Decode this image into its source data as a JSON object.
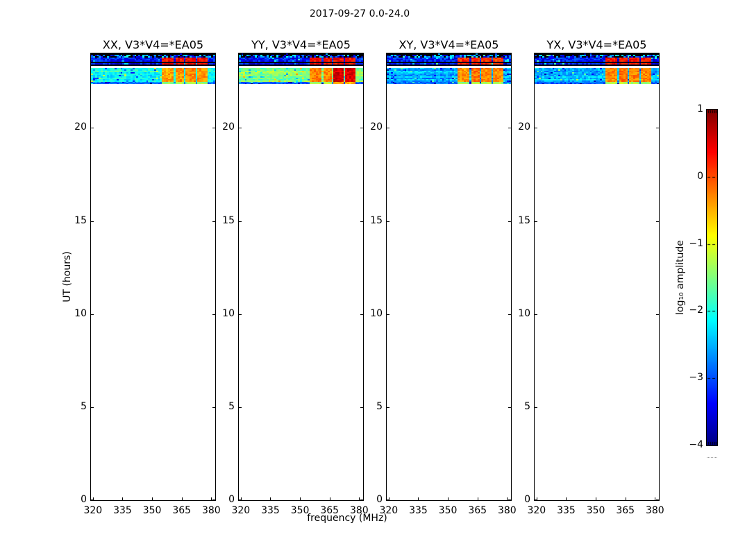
{
  "chart_data": {
    "type": "heatmap",
    "title": "2017-09-27 0.0-24.0",
    "xlabel": "frequency (MHz)",
    "ylabel": "UT (hours)",
    "colormap": "jet",
    "x_range_mhz": [
      319,
      382
    ],
    "x_tick_labels": [
      "320",
      "335",
      "350",
      "365",
      "380"
    ],
    "x_tick_values": [
      320,
      335,
      350,
      365,
      380
    ],
    "y_range_hours": [
      0,
      24
    ],
    "y_tick_labels": [
      "0",
      "5",
      "10",
      "15",
      "20"
    ],
    "y_tick_values": [
      0,
      5,
      10,
      15,
      20
    ],
    "colorbar": {
      "label": "log₁₀ amplitude",
      "tick_labels": [
        "1",
        "0",
        "−1",
        "−2",
        "−3",
        "−4"
      ],
      "tick_values": [
        1,
        0,
        -1,
        -2,
        -3,
        -4
      ],
      "range": [
        -4,
        1
      ]
    },
    "panels": [
      {
        "title": "XX, V3*V4=*EA05",
        "pol": "XX",
        "main_amp": -2.05,
        "main_patch_amps": [
          -0.4,
          -0.35,
          -0.3,
          -0.35
        ],
        "upper_patch_amp": 0.35
      },
      {
        "title": "YY, V3*V4=*EA05",
        "pol": "YY",
        "main_amp": -1.5,
        "main_patch_amps": [
          -0.25,
          -0.25,
          0.55,
          0.5
        ],
        "upper_patch_amp": 0.35
      },
      {
        "title": "XY, V3*V4=*EA05",
        "pol": "XY",
        "main_amp": -2.55,
        "main_patch_amps": [
          -0.35,
          -0.2,
          -0.3,
          -0.3
        ],
        "upper_patch_amp": 0.15
      },
      {
        "title": "YX, V3*V4=*EA05",
        "pol": "YX",
        "main_amp": -2.45,
        "main_patch_amps": [
          -0.3,
          -0.2,
          -0.25,
          -0.3
        ],
        "upper_patch_amp": 0.3
      }
    ],
    "time_bands": [
      {
        "id": "mask-top",
        "t": [
          23.78,
          24.0
        ],
        "type": "mask",
        "speckle_row_t": 23.87
      },
      {
        "id": "upper-blue",
        "t": [
          23.33,
          23.78
        ],
        "type": "upper",
        "amp": -3.3,
        "noise": 0.9,
        "dark_line_t": [
          23.36,
          23.52
        ],
        "has_patches": true
      },
      {
        "id": "no-data-gap",
        "t": [
          23.2,
          23.33
        ],
        "type": "empty"
      },
      {
        "id": "main-band",
        "t": [
          22.35,
          23.2
        ],
        "type": "main",
        "noise": 0.7,
        "row_jitter": 0.45,
        "bottom_edge_t": 22.45,
        "bottom_edge_amp": -2.85,
        "has_patches": true
      }
    ],
    "rfi_blocks_mhz": [
      [
        355.5,
        360.5
      ],
      [
        362,
        366
      ],
      [
        367.5,
        371.5
      ],
      [
        373,
        377.5
      ]
    ]
  }
}
